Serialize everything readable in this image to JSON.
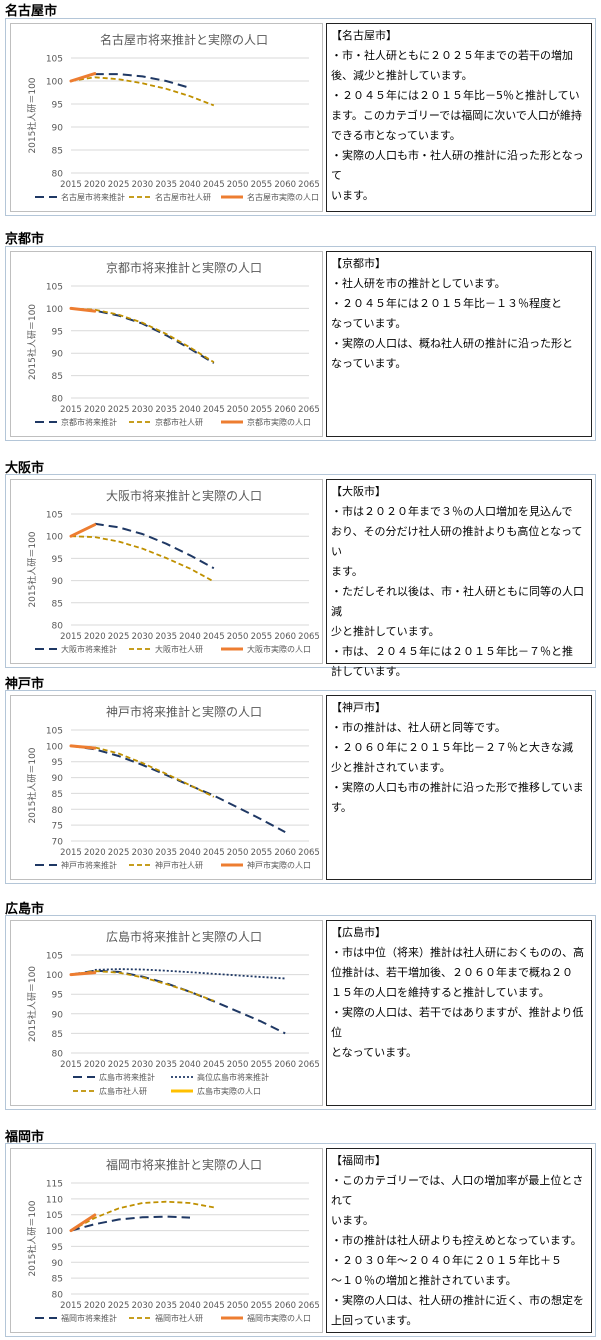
{
  "sections": [
    {
      "title": "名古屋市",
      "chart_data": {
        "type": "line",
        "title": "名古屋市将来推計と実際の人口",
        "ylabel": "2015社人研＝100",
        "ylim": [
          80,
          105
        ],
        "yticks": [
          80,
          85,
          90,
          95,
          100,
          105
        ],
        "xlim": [
          2015,
          2065
        ],
        "xticks": [
          2015,
          2020,
          2025,
          2030,
          2035,
          2040,
          2045,
          2050,
          2055,
          2060,
          2065
        ],
        "series": [
          {
            "name": "名古屋市将来推計",
            "color": "#1f3864",
            "style": "longdash",
            "width": 2,
            "x": [
              2020,
              2025,
              2030,
              2035,
              2040
            ],
            "y": [
              101.5,
              101.5,
              101.0,
              100.0,
              98.5
            ]
          },
          {
            "name": "名古屋市社人研",
            "color": "#bf9000",
            "style": "dash",
            "width": 1.8,
            "x": [
              2015,
              2020,
              2025,
              2030,
              2035,
              2040,
              2045
            ],
            "y": [
              100,
              100.8,
              100.4,
              99.5,
              98.3,
              96.7,
              94.7
            ]
          },
          {
            "name": "名古屋市実際の人口",
            "color": "#ed7d31",
            "style": "solid",
            "width": 3,
            "x": [
              2015,
              2020
            ],
            "y": [
              100,
              101.6
            ]
          }
        ]
      },
      "text": [
        "【名古屋市】",
        "・市・社人研ともに２０２５年までの若干の増加",
        "後、減少と推計しています。",
        "・２０４５年には２０１５年比－5％と推計してい",
        "ます。このカテゴリーでは福岡に次いで人口が維持",
        "できる市となっています。",
        "・実際の人口も市・社人研の推計に沿った形となって",
        "います。"
      ]
    },
    {
      "title": "京都市",
      "chart_data": {
        "type": "line",
        "title": "京都市将来推計と実際の人口",
        "ylabel": "2015社人研＝100",
        "ylim": [
          80,
          105
        ],
        "yticks": [
          80,
          85,
          90,
          95,
          100,
          105
        ],
        "xlim": [
          2015,
          2065
        ],
        "xticks": [
          2015,
          2020,
          2025,
          2030,
          2035,
          2040,
          2045,
          2050,
          2055,
          2060,
          2065
        ],
        "series": [
          {
            "name": "京都市将来推計",
            "color": "#1f3864",
            "style": "longdash",
            "width": 2,
            "x": [
              2015,
              2020,
              2025,
              2030,
              2035,
              2040,
              2045
            ],
            "y": [
              100,
              99.5,
              98.4,
              96.6,
              94.0,
              91.0,
              87.8
            ]
          },
          {
            "name": "京都市社人研",
            "color": "#bf9000",
            "style": "dash",
            "width": 1.8,
            "x": [
              2015,
              2020,
              2025,
              2030,
              2035,
              2040,
              2045
            ],
            "y": [
              100,
              99.7,
              98.6,
              96.8,
              94.3,
              91.3,
              88.0
            ]
          },
          {
            "name": "京都市実際の人口",
            "color": "#ed7d31",
            "style": "solid",
            "width": 3,
            "x": [
              2015,
              2020
            ],
            "y": [
              100,
              99.4
            ]
          }
        ]
      },
      "text": [
        "【京都市】",
        "・社人研を市の推計としています。",
        "・２０４５年には２０１５年比－１３％程度と",
        "なっています。",
        "・実際の人口は、概ね社人研の推計に沿った形と",
        "なっています。"
      ]
    },
    {
      "title": "大阪市",
      "chart_data": {
        "type": "line",
        "title": "大阪市将来推計と実際の人口",
        "ylabel": "2015社人研＝100",
        "ylim": [
          80,
          105
        ],
        "yticks": [
          80,
          85,
          90,
          95,
          100,
          105
        ],
        "xlim": [
          2015,
          2065
        ],
        "xticks": [
          2015,
          2020,
          2025,
          2030,
          2035,
          2040,
          2045,
          2050,
          2055,
          2060,
          2065
        ],
        "series": [
          {
            "name": "大阪市将来推計",
            "color": "#1f3864",
            "style": "longdash",
            "width": 2,
            "x": [
              2020,
              2025,
              2030,
              2035,
              2040,
              2045
            ],
            "y": [
              102.8,
              102.0,
              100.5,
              98.3,
              95.7,
              92.8
            ]
          },
          {
            "name": "大阪市社人研",
            "color": "#bf9000",
            "style": "dash",
            "width": 1.8,
            "x": [
              2015,
              2020,
              2025,
              2030,
              2035,
              2040,
              2045
            ],
            "y": [
              100,
              99.8,
              98.8,
              97.2,
              95.1,
              92.7,
              89.8
            ]
          },
          {
            "name": "大阪市実際の人口",
            "color": "#ed7d31",
            "style": "solid",
            "width": 3,
            "x": [
              2015,
              2020
            ],
            "y": [
              100,
              102.6
            ]
          }
        ]
      },
      "text": [
        "【大阪市】",
        "・市は２０２０年まで３％の人口増加を見込んで",
        "おり、その分だけ社人研の推計よりも高位となってい",
        "ます。",
        "・ただしそれ以後は、市・社人研ともに同等の人口減",
        "少と推計しています。",
        "・市は、２０４５年には２０１５年比－７％と推",
        "計しています。"
      ]
    },
    {
      "title": "神戸市",
      "chart_data": {
        "type": "line",
        "title": "神戸市将来推計と実際の人口",
        "ylabel": "2015社人研＝100",
        "ylim": [
          70,
          105
        ],
        "yticks": [
          70,
          75,
          80,
          85,
          90,
          95,
          100,
          105
        ],
        "xlim": [
          2015,
          2065
        ],
        "xticks": [
          2015,
          2020,
          2025,
          2030,
          2035,
          2040,
          2045,
          2050,
          2055,
          2060,
          2065
        ],
        "series": [
          {
            "name": "神戸市将来推計",
            "color": "#1f3864",
            "style": "longdash",
            "width": 2,
            "x": [
              2015,
              2020,
              2025,
              2030,
              2035,
              2040,
              2045,
              2050,
              2055,
              2060
            ],
            "y": [
              100,
              98.9,
              96.8,
              94.0,
              90.8,
              87.5,
              84.3,
              80.6,
              76.8,
              72.8
            ]
          },
          {
            "name": "神戸市社人研",
            "color": "#bf9000",
            "style": "dash",
            "width": 1.8,
            "x": [
              2015,
              2020,
              2025,
              2030,
              2035,
              2040,
              2045
            ],
            "y": [
              100,
              99.5,
              97.6,
              94.6,
              91.2,
              87.6,
              83.9
            ]
          },
          {
            "name": "神戸市実際の人口",
            "color": "#ed7d31",
            "style": "solid",
            "width": 3,
            "x": [
              2015,
              2020
            ],
            "y": [
              100,
              99.3
            ]
          }
        ]
      },
      "text": [
        "【神戸市】",
        "・市の推計は、社人研と同等です。",
        "・２０６０年に２０１５年比－２７％と大きな減",
        "少と推計されています。",
        "・実際の人口も市の推計に沿った形で推移していま",
        "す。"
      ]
    },
    {
      "title": "広島市",
      "chart_data": {
        "type": "line",
        "title": "広島市将来推計と実際の人口",
        "ylabel": "2015社人研＝100",
        "ylim": [
          80,
          105
        ],
        "yticks": [
          80,
          85,
          90,
          95,
          100,
          105
        ],
        "xlim": [
          2015,
          2065
        ],
        "xticks": [
          2015,
          2020,
          2025,
          2030,
          2035,
          2040,
          2045,
          2050,
          2055,
          2060,
          2065
        ],
        "legend_rows": 2,
        "series": [
          {
            "name": "広島市将来推計",
            "color": "#1f3864",
            "style": "longdash",
            "width": 2,
            "x": [
              2015,
              2020,
              2025,
              2030,
              2035,
              2040,
              2045,
              2050,
              2055,
              2060
            ],
            "y": [
              100,
              101.0,
              100.7,
              99.5,
              97.8,
              95.6,
              93.2,
              90.6,
              88.0,
              85.0
            ]
          },
          {
            "name": "高位広島市将来推計",
            "color": "#1f3864",
            "style": "dot",
            "width": 1.8,
            "x": [
              2020,
              2025,
              2030,
              2035,
              2040,
              2045,
              2050,
              2055,
              2060
            ],
            "y": [
              101.2,
              101.4,
              101.3,
              101.0,
              100.6,
              100.2,
              99.8,
              99.4,
              99.0
            ]
          },
          {
            "name": "広島市社人研",
            "color": "#bf9000",
            "style": "dash",
            "width": 1.8,
            "x": [
              2015,
              2020,
              2025,
              2030,
              2035,
              2040,
              2045
            ],
            "y": [
              100,
              100.9,
              100.5,
              99.3,
              97.6,
              95.6,
              93.3
            ]
          },
          {
            "name": "広島市実際の人口",
            "color": "#ffc000",
            "legend_color": "#ffc000",
            "style": "solid",
            "width": 3,
            "draw_color": "#ed7d31",
            "x": [
              2015,
              2020
            ],
            "y": [
              100,
              100.5
            ]
          }
        ]
      },
      "text": [
        "【広島市】",
        "・市は中位（将来）推計は社人研におくものの、高",
        "位推計は、若干増加後、２０６０年まで概ね２０",
        "１５年の人口を維持すると推計しています。",
        "・実際の人口は、若干ではありますが、推計より低位",
        "となっています。"
      ]
    },
    {
      "title": "福岡市",
      "chart_data": {
        "type": "line",
        "title": "福岡市将来推計と実際の人口",
        "ylabel": "2015社人研＝100",
        "ylim": [
          80,
          115
        ],
        "yticks": [
          80,
          85,
          90,
          95,
          100,
          105,
          110,
          115
        ],
        "xlim": [
          2015,
          2065
        ],
        "xticks": [
          2015,
          2020,
          2025,
          2030,
          2035,
          2040,
          2045,
          2050,
          2055,
          2060,
          2065
        ],
        "series": [
          {
            "name": "福岡市将来推計",
            "color": "#1f3864",
            "style": "longdash",
            "width": 2,
            "x": [
              2015,
              2020,
              2025,
              2030,
              2035,
              2040
            ],
            "y": [
              100,
              102.0,
              103.5,
              104.2,
              104.4,
              104.1
            ]
          },
          {
            "name": "福岡市社人研",
            "color": "#bf9000",
            "style": "dash",
            "width": 1.8,
            "x": [
              2015,
              2020,
              2025,
              2030,
              2035,
              2040,
              2045
            ],
            "y": [
              100,
              104.0,
              107.0,
              108.7,
              109.1,
              108.7,
              107.3
            ]
          },
          {
            "name": "福岡市実際の人口",
            "color": "#ed7d31",
            "style": "solid",
            "width": 3,
            "x": [
              2015,
              2020
            ],
            "y": [
              100,
              104.9
            ]
          }
        ]
      },
      "text": [
        "【福岡市】",
        "・このカテゴリーでは、人口の増加率が最上位とされて",
        "います。",
        "・市の推計は社人研よりも控えめとなっています。",
        "・２０３０年～２０４０年に２０１５年比＋５",
        "～１０％の増加と推計されています。",
        "・実際の人口は、社人研の推計に近く、市の想定を",
        "上回っています。"
      ]
    }
  ]
}
